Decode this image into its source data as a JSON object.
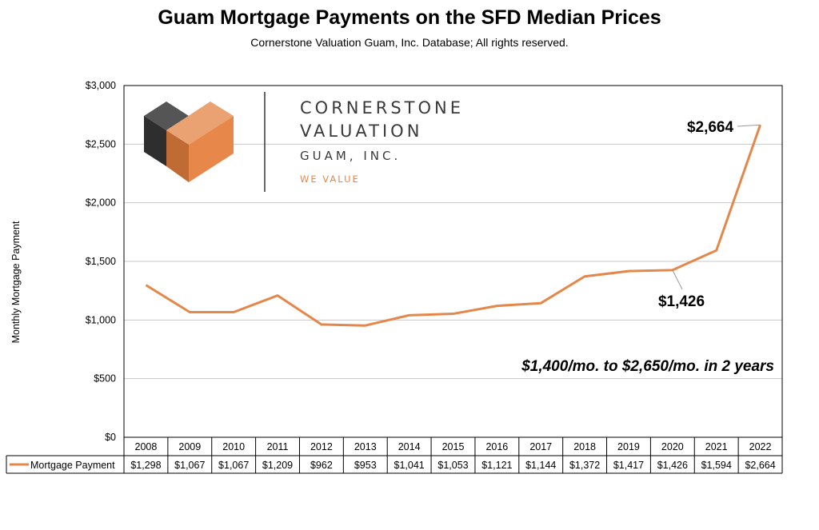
{
  "title": "Guam Mortgage Payments on the SFD Median Prices",
  "subtitle": "Cornerstone Valuation Guam, Inc. Database; All rights reserved.",
  "logo": {
    "line1": "CORNERSTONE",
    "line2": "VALUATION",
    "line3": "GUAM, INC.",
    "tagline": "WE VALUE"
  },
  "annotations": {
    "peak": "$2,664",
    "y2020": "$1,426",
    "note": "$1,400/mo. to $2,650/mo. in 2 years"
  },
  "colors": {
    "series": "#E4874A",
    "grid": "#c8c8c8",
    "logo_orange": "#E8874A",
    "logo_dark": "#3d3d3d"
  },
  "chart_data": {
    "type": "line",
    "title": "Guam Mortgage Payments on the SFD Median Prices",
    "ylabel": "Monthly Mortgage Payment",
    "xlabel": "",
    "ylim": [
      0,
      3000
    ],
    "yticks": [
      "$0",
      "$500",
      "$1,000",
      "$1,500",
      "$2,000",
      "$2,500",
      "$3,000"
    ],
    "grid": true,
    "categories": [
      "2008",
      "2009",
      "2010",
      "2011",
      "2012",
      "2013",
      "2014",
      "2015",
      "2016",
      "2017",
      "2018",
      "2019",
      "2020",
      "2021",
      "2022"
    ],
    "series": [
      {
        "name": "Mortgage Payment",
        "values": [
          1298,
          1067,
          1067,
          1209,
          962,
          953,
          1041,
          1053,
          1121,
          1144,
          1372,
          1417,
          1426,
          1594,
          2664
        ],
        "labels": [
          "$1,298",
          "$1,067",
          "$1,067",
          "$1,209",
          "$962",
          "$953",
          "$1,041",
          "$1,053",
          "$1,121",
          "$1,144",
          "$1,372",
          "$1,417",
          "$1,426",
          "$1,594",
          "$2,664"
        ]
      }
    ]
  }
}
